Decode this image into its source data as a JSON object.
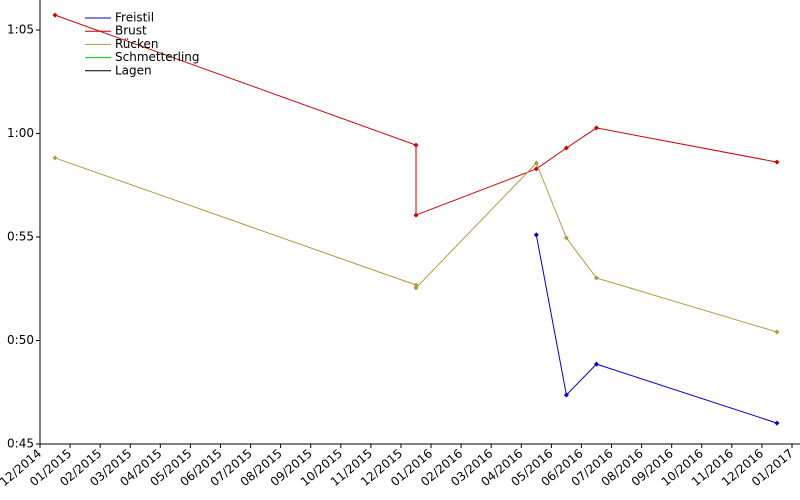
{
  "chart_data": {
    "type": "line",
    "x": [
      "2014-12",
      "2015-12",
      "2015-12",
      "2016-04",
      "2016-05",
      "2016-06",
      "2016-12"
    ],
    "series": [
      {
        "name": "Freistil",
        "color": "#0000cc",
        "values": [
          null,
          null,
          null,
          55.1,
          47.37,
          48.86,
          46.01
        ]
      },
      {
        "name": "Brust",
        "color": "#cc0000",
        "values": [
          65.72,
          59.44,
          56.06,
          58.29,
          59.3,
          60.27,
          58.62
        ]
      },
      {
        "name": "Rücken",
        "color": "#b09a40",
        "values": [
          58.82,
          52.68,
          52.54,
          58.57,
          54.95,
          53.02,
          50.41
        ]
      },
      {
        "name": "Schmetterling",
        "color": "#00cc00",
        "values": [
          null,
          null,
          null,
          null,
          null,
          null,
          null
        ]
      },
      {
        "name": "Lagen",
        "color": "#000000",
        "values": [
          null,
          null,
          null,
          null,
          null,
          null,
          null
        ]
      }
    ],
    "xlim": [
      "2014-12",
      "2017-01"
    ],
    "xticks": [
      {
        "value": "2014-12",
        "label": "12/2014"
      },
      {
        "value": "2015-01",
        "label": "01/2015"
      },
      {
        "value": "2015-02",
        "label": "02/2015"
      },
      {
        "value": "2015-03",
        "label": "03/2015"
      },
      {
        "value": "2015-04",
        "label": "04/2015"
      },
      {
        "value": "2015-05",
        "label": "05/2015"
      },
      {
        "value": "2015-06",
        "label": "06/2015"
      },
      {
        "value": "2015-07",
        "label": "07/2015"
      },
      {
        "value": "2015-08",
        "label": "08/2015"
      },
      {
        "value": "2015-09",
        "label": "09/2015"
      },
      {
        "value": "2015-10",
        "label": "10/2015"
      },
      {
        "value": "2015-11",
        "label": "11/2015"
      },
      {
        "value": "2015-12",
        "label": "12/2015"
      },
      {
        "value": "2016-01",
        "label": "01/2016"
      },
      {
        "value": "2016-02",
        "label": "02/2016"
      },
      {
        "value": "2016-03",
        "label": "03/2016"
      },
      {
        "value": "2016-04",
        "label": "04/2016"
      },
      {
        "value": "2016-05",
        "label": "05/2016"
      },
      {
        "value": "2016-06",
        "label": "06/2016"
      },
      {
        "value": "2016-07",
        "label": "07/2016"
      },
      {
        "value": "2016-08",
        "label": "08/2016"
      },
      {
        "value": "2016-09",
        "label": "09/2016"
      },
      {
        "value": "2016-10",
        "label": "10/2016"
      },
      {
        "value": "2016-11",
        "label": "11/2016"
      },
      {
        "value": "2016-12",
        "label": "12/2016"
      },
      {
        "value": "2017-01",
        "label": "01/2017"
      }
    ],
    "ylim": [
      45,
      66.45
    ],
    "yticks": [
      {
        "value": 45,
        "label": "0:45"
      },
      {
        "value": 50,
        "label": "0:50"
      },
      {
        "value": 55,
        "label": "0:55"
      },
      {
        "value": 60,
        "label": "1:00"
      },
      {
        "value": 65,
        "label": "1:05"
      }
    ],
    "legend": "upper-left"
  }
}
